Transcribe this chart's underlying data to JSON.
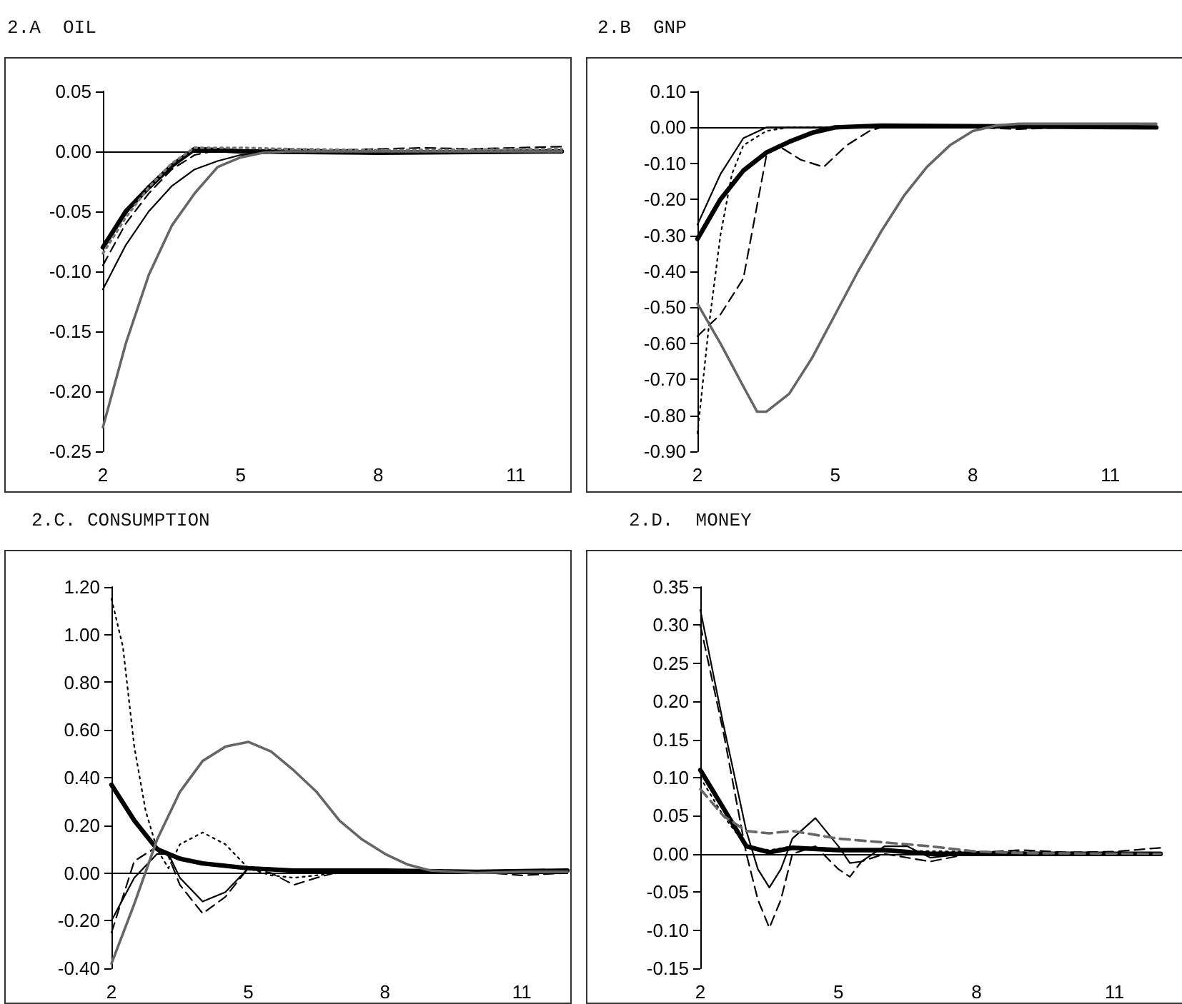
{
  "chart_data": [
    {
      "type": "line",
      "title": "2.A  OIL",
      "marker": "none",
      "xlim": [
        2,
        12
      ],
      "xticks": [
        2,
        5,
        8,
        11
      ],
      "ylim": [
        -0.25,
        0.05
      ],
      "yticks": [
        {
          "value": 0.05,
          "label": "0.05"
        },
        {
          "value": 0,
          "label": "0.00"
        },
        {
          "value": -0.05,
          "label": "-0.05"
        },
        {
          "value": -0.1,
          "label": "-0.10"
        },
        {
          "value": -0.15,
          "label": "-0.15"
        },
        {
          "value": -0.2,
          "label": "-0.20"
        },
        {
          "value": -0.25,
          "label": "-0.25"
        }
      ],
      "series": [
        {
          "color": "#000000",
          "line_style": "solid",
          "x": [
            2,
            2.5,
            3,
            3.5,
            4,
            4.5,
            5,
            8,
            12
          ],
          "values": [
            -0.08,
            -0.05,
            -0.03,
            -0.012,
            0.002,
            0.001,
            0,
            -0.001,
            0
          ]
        },
        {
          "color": "#000000",
          "line_style": "solid",
          "x": [
            2,
            2.5,
            3,
            3.5,
            4,
            4.5,
            5,
            6,
            12
          ],
          "values": [
            -0.115,
            -0.078,
            -0.05,
            -0.029,
            -0.015,
            -0.008,
            -0.003,
            0,
            0
          ]
        },
        {
          "color": "#000000",
          "line_style": "dashed",
          "x": [
            2,
            2.5,
            3,
            3.5,
            4,
            4.5,
            5,
            6,
            7,
            9,
            10,
            11,
            12
          ],
          "values": [
            -0.095,
            -0.06,
            -0.035,
            -0.015,
            -0.003,
            0.001,
            0,
            0.002,
            0.001,
            0.003,
            0.002,
            0.003,
            0.004
          ]
        },
        {
          "color": "#777777",
          "line_style": "dotted",
          "x": [
            2,
            2.5,
            3,
            3.5,
            4,
            5,
            6,
            8,
            12
          ],
          "values": [
            -0.085,
            -0.055,
            -0.03,
            -0.01,
            0.003,
            0.003,
            0.002,
            0.001,
            0.002
          ]
        },
        {
          "color": "#666666",
          "line_style": "solid",
          "x": [
            2,
            2.5,
            3,
            3.5,
            4,
            4.5,
            5,
            5.5,
            6,
            8,
            12
          ],
          "values": [
            -0.23,
            -0.16,
            -0.103,
            -0.062,
            -0.035,
            -0.013,
            -0.005,
            -0.001,
            0,
            0,
            0
          ]
        }
      ]
    },
    {
      "type": "line",
      "title": "2.B  GNP",
      "marker": "none",
      "xlim": [
        2,
        12
      ],
      "xticks": [
        2,
        5,
        8,
        11
      ],
      "ylim": [
        -0.9,
        0.1
      ],
      "yticks": [
        {
          "value": 0.1,
          "label": "0.10"
        },
        {
          "value": 0,
          "label": "0.00"
        },
        {
          "value": -0.1,
          "label": "-0.10"
        },
        {
          "value": -0.2,
          "label": "-0.20"
        },
        {
          "value": -0.3,
          "label": "-0.30"
        },
        {
          "value": -0.4,
          "label": "-0.40"
        },
        {
          "value": -0.5,
          "label": "-0.50"
        },
        {
          "value": -0.6,
          "label": "-0.60"
        },
        {
          "value": -0.7,
          "label": "-0.70"
        },
        {
          "value": -0.8,
          "label": "-0.80"
        },
        {
          "value": -0.9,
          "label": "-0.90"
        }
      ],
      "series": [
        {
          "color": "#000000",
          "line_style": "solid",
          "x": [
            2,
            2.5,
            3,
            3.5,
            4,
            4.5,
            5,
            6,
            12
          ],
          "values": [
            -0.31,
            -0.2,
            -0.12,
            -0.07,
            -0.04,
            -0.015,
            0,
            0.005,
            0
          ]
        },
        {
          "color": "#000000",
          "line_style": "solid",
          "x": [
            2,
            2.5,
            3,
            3.5,
            4,
            12
          ],
          "values": [
            -0.27,
            -0.13,
            -0.03,
            0,
            0,
            0
          ]
        },
        {
          "color": "#000000",
          "line_style": "dashed",
          "x": [
            2,
            2.5,
            3,
            3.25,
            3.5,
            3.75,
            4.25,
            4.75,
            5.25,
            5.75,
            6,
            7,
            8,
            9,
            10,
            12
          ],
          "values": [
            -0.58,
            -0.52,
            -0.42,
            -0.25,
            -0.08,
            -0.05,
            -0.09,
            -0.11,
            -0.05,
            -0.01,
            0,
            0.005,
            0,
            -0.005,
            0,
            0
          ]
        },
        {
          "color": "#000000",
          "line_style": "dotted",
          "x": [
            2,
            2.25,
            2.5,
            2.75,
            3,
            3.5,
            4,
            5,
            12
          ],
          "values": [
            -0.85,
            -0.55,
            -0.3,
            -0.13,
            -0.05,
            -0.01,
            0,
            0,
            0
          ]
        },
        {
          "color": "#666666",
          "line_style": "solid",
          "x": [
            2,
            2.5,
            3,
            3.3,
            3.5,
            4,
            4.5,
            5,
            5.5,
            6,
            6.5,
            7,
            7.5,
            8,
            8.5,
            9,
            10,
            11,
            12
          ],
          "values": [
            -0.49,
            -0.6,
            -0.72,
            -0.79,
            -0.79,
            -0.74,
            -0.64,
            -0.52,
            -0.4,
            -0.29,
            -0.19,
            -0.11,
            -0.05,
            -0.01,
            0.005,
            0.01,
            0.01,
            0.01,
            0.01
          ]
        }
      ]
    },
    {
      "type": "line",
      "title": "2.C. CONSUMPTION",
      "marker": "none",
      "xlim": [
        2,
        12
      ],
      "xticks": [
        2,
        5,
        8,
        11
      ],
      "ylim": [
        -0.4,
        1.2
      ],
      "yticks": [
        {
          "value": 1.2,
          "label": "1.20"
        },
        {
          "value": 1,
          "label": "1.00"
        },
        {
          "value": 0.8,
          "label": "0.80"
        },
        {
          "value": 0.6,
          "label": "0.60"
        },
        {
          "value": 0.4,
          "label": "0.40"
        },
        {
          "value": 0.2,
          "label": "0.20"
        },
        {
          "value": 0,
          "label": "0.00"
        },
        {
          "value": -0.2,
          "label": "-0.20"
        },
        {
          "value": -0.4,
          "label": "-0.40"
        }
      ],
      "series": [
        {
          "color": "#000000",
          "line_style": "solid",
          "x": [
            2,
            2.5,
            3,
            3.5,
            4,
            5,
            6,
            8,
            10,
            12
          ],
          "values": [
            0.37,
            0.22,
            0.1,
            0.06,
            0.04,
            0.02,
            0.01,
            0.01,
            0.005,
            0.01
          ]
        },
        {
          "color": "#000000",
          "line_style": "solid",
          "x": [
            2,
            2.5,
            3,
            3.25,
            3.5,
            4,
            4.5,
            5,
            5.5,
            6,
            7,
            12
          ],
          "values": [
            -0.2,
            -0.02,
            0.08,
            0.08,
            -0.02,
            -0.12,
            -0.08,
            0.02,
            0.02,
            0,
            0,
            0
          ]
        },
        {
          "color": "#000000",
          "line_style": "dashed",
          "x": [
            2,
            2.5,
            3,
            3.25,
            3.5,
            4,
            4.5,
            5,
            5.5,
            6,
            6.5,
            7,
            9,
            10,
            11,
            12
          ],
          "values": [
            -0.25,
            0.05,
            0.11,
            0.07,
            -0.05,
            -0.17,
            -0.1,
            0.02,
            0,
            -0.05,
            -0.02,
            0.005,
            0,
            0.005,
            -0.01,
            0
          ]
        },
        {
          "color": "#000000",
          "line_style": "dotted",
          "x": [
            2,
            2.25,
            2.5,
            2.75,
            3,
            3.25,
            3.5,
            4,
            4.5,
            5,
            5.5,
            6,
            7,
            12
          ],
          "values": [
            1.15,
            0.95,
            0.53,
            0.26,
            0.1,
            0.02,
            0.12,
            0.17,
            0.12,
            0.02,
            -0.01,
            -0.02,
            0,
            0
          ]
        },
        {
          "color": "#666666",
          "line_style": "solid",
          "x": [
            2,
            2.5,
            3,
            3.5,
            4,
            4.5,
            5,
            5.5,
            6,
            6.5,
            7,
            7.5,
            8,
            8.5,
            9,
            10,
            11,
            12
          ],
          "values": [
            -0.38,
            -0.13,
            0.14,
            0.34,
            0.47,
            0.53,
            0.55,
            0.51,
            0.43,
            0.34,
            0.22,
            0.14,
            0.08,
            0.035,
            0.01,
            0,
            0.005,
            0.005
          ]
        }
      ]
    },
    {
      "type": "line",
      "title": "2.D.  MONEY",
      "marker": "none",
      "xlim": [
        2,
        12
      ],
      "xticks": [
        2,
        5,
        8,
        11
      ],
      "ylim": [
        -0.15,
        0.35
      ],
      "yticks": [
        {
          "value": 0.35,
          "label": "0.35"
        },
        {
          "value": 0.3,
          "label": "0.30"
        },
        {
          "value": 0.25,
          "label": "0.25"
        },
        {
          "value": 0.2,
          "label": "0.20"
        },
        {
          "value": 0.15,
          "label": "0.15"
        },
        {
          "value": 0.1,
          "label": "0.10"
        },
        {
          "value": 0.05,
          "label": "0.05"
        },
        {
          "value": 0,
          "label": "0.00"
        },
        {
          "value": -0.05,
          "label": "-0.05"
        },
        {
          "value": -0.1,
          "label": "-0.10"
        },
        {
          "value": -0.15,
          "label": "-0.15"
        }
      ],
      "series": [
        {
          "color": "#000000",
          "line_style": "solid",
          "x": [
            2,
            2.5,
            3,
            3.5,
            4,
            5,
            6,
            7,
            12
          ],
          "values": [
            0.11,
            0.06,
            0.01,
            0.002,
            0.008,
            0.005,
            0.005,
            0,
            0
          ]
        },
        {
          "color": "#000000",
          "line_style": "solid",
          "x": [
            2,
            2.5,
            3,
            3.25,
            3.5,
            3.75,
            4,
            4.5,
            5,
            5.25,
            5.5,
            6,
            6.5,
            7,
            8,
            12
          ],
          "values": [
            0.32,
            0.17,
            0.03,
            -0.02,
            -0.044,
            -0.02,
            0.02,
            0.047,
            0.01,
            -0.012,
            -0.01,
            0.01,
            0.01,
            -0.005,
            0.002,
            0
          ]
        },
        {
          "color": "#000000",
          "line_style": "dashed",
          "x": [
            2,
            2.5,
            3,
            3.25,
            3.5,
            3.75,
            4,
            4.5,
            5,
            5.25,
            5.5,
            6,
            7,
            8,
            9,
            10,
            11,
            12
          ],
          "values": [
            0.3,
            0.16,
            0,
            -0.06,
            -0.097,
            -0.06,
            0,
            0.01,
            -0.02,
            -0.03,
            -0.01,
            0,
            -0.01,
            0.002,
            0.005,
            0.002,
            0.003,
            0.008
          ]
        },
        {
          "color": "#000000",
          "line_style": "dotted",
          "x": [
            2,
            2.5,
            3,
            3.5,
            4,
            5,
            12
          ],
          "values": [
            0.1,
            0.05,
            0.01,
            0.005,
            0.01,
            0.005,
            0
          ]
        },
        {
          "color": "#666666",
          "line_style": "dashed",
          "x": [
            2,
            2.5,
            3,
            3.5,
            4,
            4.5,
            5,
            6,
            7,
            8,
            9,
            12
          ],
          "values": [
            0.085,
            0.05,
            0.03,
            0.027,
            0.03,
            0.025,
            0.02,
            0.015,
            0.01,
            0.003,
            0.001,
            0
          ]
        }
      ]
    }
  ]
}
